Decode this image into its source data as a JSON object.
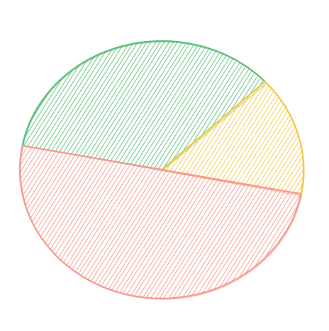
{
  "chart_data": {
    "type": "pie",
    "style": "hand-drawn hatched",
    "title": "",
    "legend": "none",
    "slices": [
      {
        "value": 0.35,
        "color": "#5ec07a"
      },
      {
        "value": 0.15,
        "color": "#f2c94c"
      },
      {
        "value": 0.5,
        "color": "#f59a90"
      }
    ]
  }
}
